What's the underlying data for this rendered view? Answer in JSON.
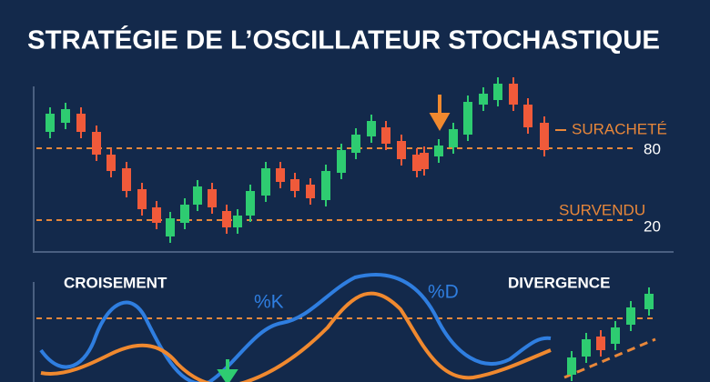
{
  "header": {
    "title": "STRATÉGIE DE L’OSCILLATEUR STOCHASTIQUE"
  },
  "top_panel": {
    "overbought_label": "SURACHETÉ",
    "overbought_level": "80",
    "oversold_label": "SURVENDU",
    "oversold_level": "20"
  },
  "bottom_panel": {
    "crossover_label": "CROISEMENT",
    "k_label": "%K",
    "d_label": "%D",
    "divergence_label": "DIVERGENCE"
  }
}
